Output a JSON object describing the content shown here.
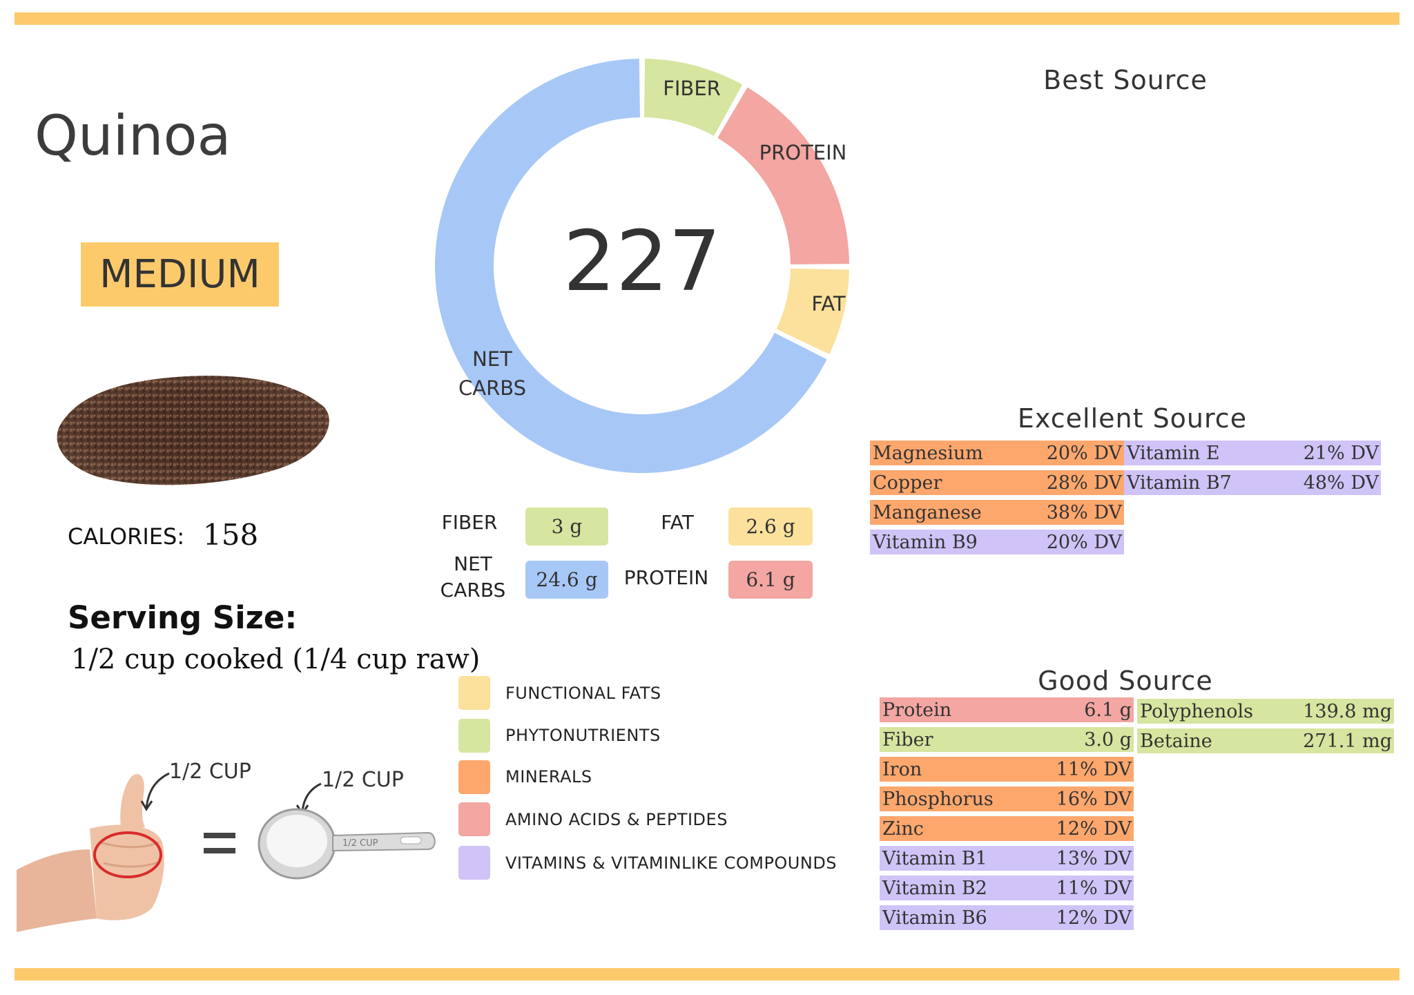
{
  "food": {
    "name": "Quinoa",
    "level": "MEDIUM",
    "calories_label": "CALORIES:",
    "calories_value": "158",
    "serving_title": "Serving Size:",
    "serving_text": "1/2 cup cooked (1/4 cup raw)"
  },
  "chart_data": {
    "type": "pie",
    "center_value": "227",
    "segments": [
      {
        "label": "FIBER",
        "value": 3,
        "color": "#d6e59f"
      },
      {
        "label": "PROTEIN",
        "value": 6.1,
        "color": "#f3a6a2"
      },
      {
        "label": "FAT",
        "value": 2.6,
        "color": "#fbe19c"
      },
      {
        "label": "NET CARBS",
        "value": 24.6,
        "color": "#a7c8f7"
      }
    ]
  },
  "macros": {
    "fiber": {
      "label": "FIBER",
      "value": "3 g"
    },
    "fat": {
      "label": "FAT",
      "value": "2.6 g"
    },
    "net_carbs": {
      "label_line1": "NET",
      "label_line2": "CARBS",
      "value": "24.6 g"
    },
    "protein": {
      "label": "PROTEIN",
      "value": "6.1 g"
    }
  },
  "legend": [
    {
      "label": "FUNCTIONAL  FATS",
      "color": "#fbe19c"
    },
    {
      "label": "PHYTONUTRIENTS",
      "color": "#d6e59f"
    },
    {
      "label": "MINERALS",
      "color": "#fda76d"
    },
    {
      "label": "AMINO ACIDS & PEPTIDES",
      "color": "#f3a6a2"
    },
    {
      "label": "VITAMINS & VITAMINLIKE COMPOUNDS",
      "color": "#d0c3f7"
    }
  ],
  "hand": {
    "label1": "1/2 CUP",
    "label2": "1/2 CUP",
    "cup_text": "1/2 CUP"
  },
  "best_source": {
    "title": "Best Source"
  },
  "excellent_source": {
    "title": "Excellent Source",
    "left": [
      {
        "name": "Magnesium",
        "value": "20% DV",
        "color": "#fda76d"
      },
      {
        "name": "Copper",
        "value": "28% DV",
        "color": "#fda76d"
      },
      {
        "name": "Manganese",
        "value": "38% DV",
        "color": "#fda76d"
      },
      {
        "name": "Vitamin B9",
        "value": "20% DV",
        "color": "#d0c3f7"
      }
    ],
    "right": [
      {
        "name": "Vitamin E",
        "value": "21% DV",
        "color": "#d0c3f7"
      },
      {
        "name": "Vitamin B7",
        "value": "48% DV",
        "color": "#d0c3f7"
      }
    ]
  },
  "good_source": {
    "title": "Good Source",
    "left": [
      {
        "name": "Protein",
        "value": "6.1 g",
        "color": "#f3a6a2"
      },
      {
        "name": "Fiber",
        "value": "3.0 g",
        "color": "#d6e59f"
      },
      {
        "name": "Iron",
        "value": "11% DV",
        "color": "#fda76d"
      },
      {
        "name": "Phosphorus",
        "value": "16% DV",
        "color": "#fda76d"
      },
      {
        "name": "Zinc",
        "value": "12% DV",
        "color": "#fda76d"
      },
      {
        "name": "Vitamin B1",
        "value": "13% DV",
        "color": "#d0c3f7"
      },
      {
        "name": "Vitamin B2",
        "value": "11% DV",
        "color": "#d0c3f7"
      },
      {
        "name": "Vitamin B6",
        "value": "12% DV",
        "color": "#d0c3f7"
      }
    ],
    "right": [
      {
        "name": "Polyphenols",
        "value": "139.8 mg",
        "color": "#d6e59f"
      },
      {
        "name": "Betaine",
        "value": "271.1 mg",
        "color": "#d6e59f"
      }
    ]
  }
}
